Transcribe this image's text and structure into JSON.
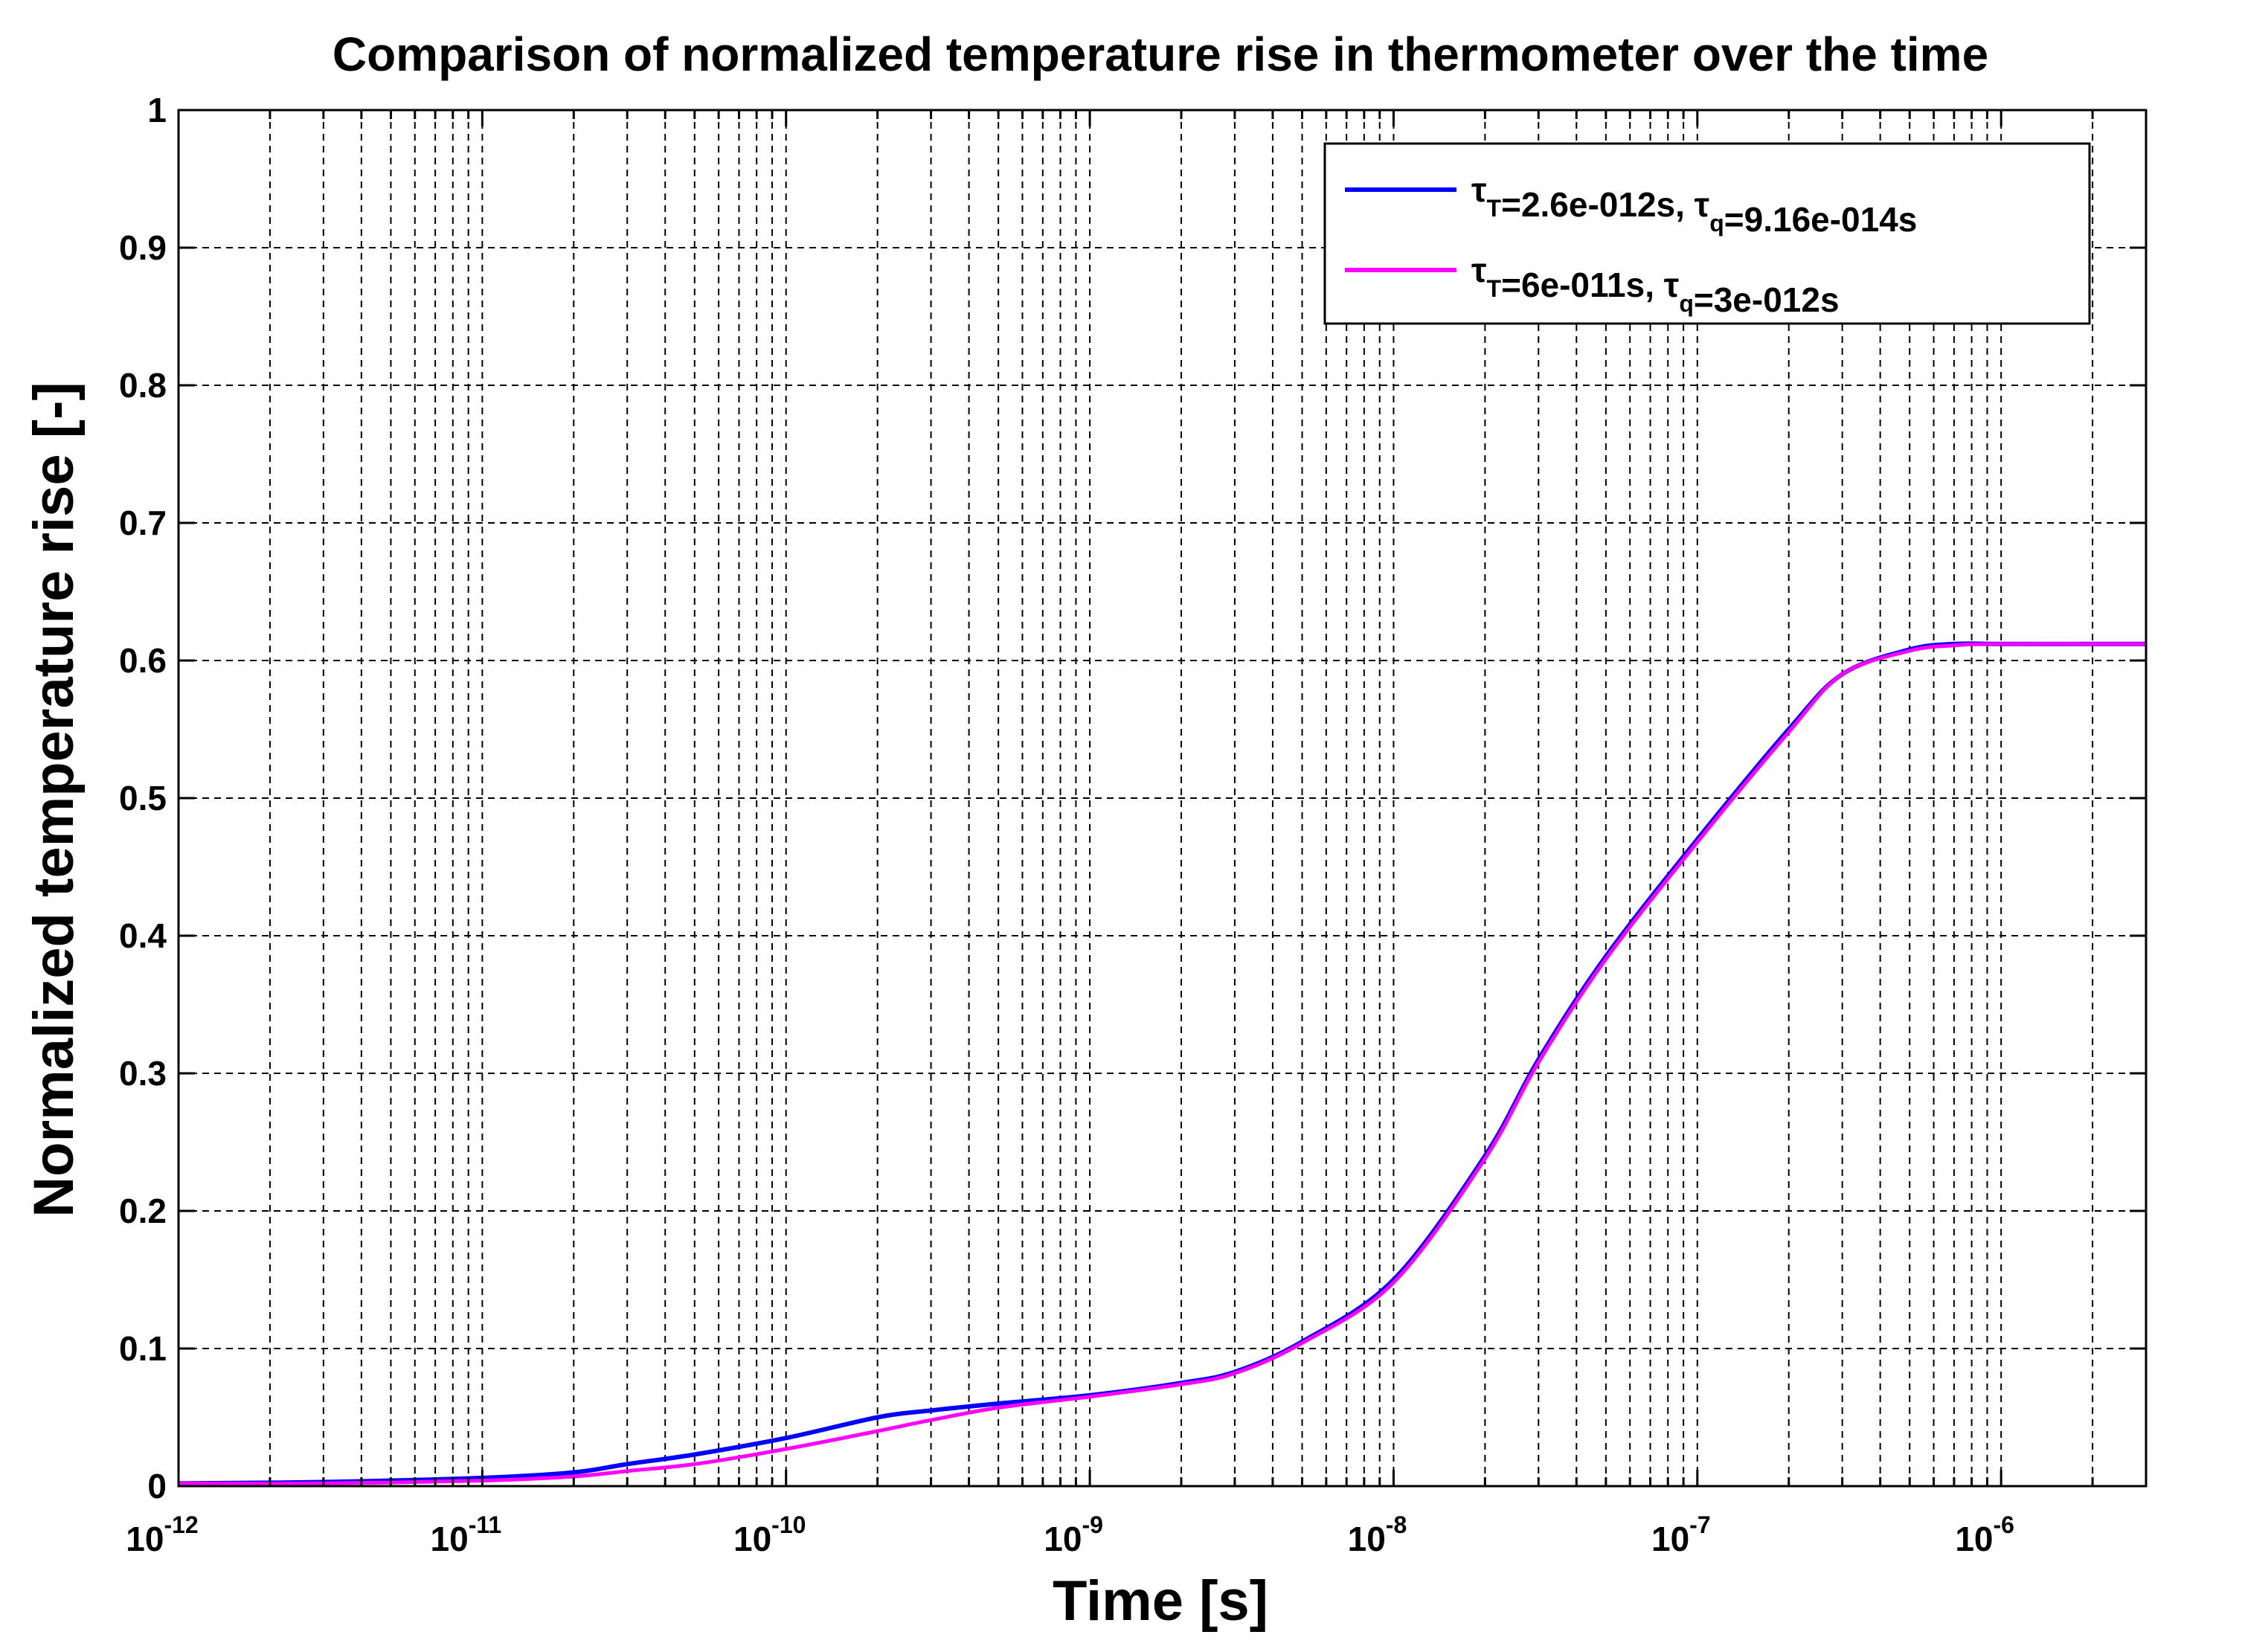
{
  "chart_data": {
    "type": "line",
    "title": "Comparison of normalized temperature rise in thermometer over the time",
    "xlabel": "Time [s]",
    "ylabel": "Normalized temperature rise [-]",
    "xscale": "log",
    "xlim": [
      1e-12,
      3e-06
    ],
    "ylim": [
      0,
      1
    ],
    "grid": true,
    "legend_position": "top-right",
    "x_ticks": [
      {
        "base": "10",
        "exp": "-12",
        "value": 1e-12
      },
      {
        "base": "10",
        "exp": "-11",
        "value": 1e-11
      },
      {
        "base": "10",
        "exp": "-10",
        "value": 1e-10
      },
      {
        "base": "10",
        "exp": "-9",
        "value": 1e-09
      },
      {
        "base": "10",
        "exp": "-8",
        "value": 1e-08
      },
      {
        "base": "10",
        "exp": "-7",
        "value": 1e-07
      },
      {
        "base": "10",
        "exp": "-6",
        "value": 1e-06
      }
    ],
    "y_ticks": [
      {
        "label": "0",
        "value": 0
      },
      {
        "label": "0.1",
        "value": 0.1
      },
      {
        "label": "0.2",
        "value": 0.2
      },
      {
        "label": "0.3",
        "value": 0.3
      },
      {
        "label": "0.4",
        "value": 0.4
      },
      {
        "label": "0.5",
        "value": 0.5
      },
      {
        "label": "0.6",
        "value": 0.6
      },
      {
        "label": "0.7",
        "value": 0.7
      },
      {
        "label": "0.8",
        "value": 0.8
      },
      {
        "label": "0.9",
        "value": 0.9
      },
      {
        "label": "1",
        "value": 1
      }
    ],
    "series": [
      {
        "name": "τT=2.6e-012s, τq=9.16e-014s",
        "legend": [
          {
            "t": "τ",
            "s": "T"
          },
          {
            "t": "=2.6e-012s, τ",
            "s": "q"
          },
          {
            "t": "=9.16e-014s",
            "s": ""
          }
        ],
        "color": "#0000ff",
        "x": [
          1e-12,
          3e-12,
          1e-11,
          2e-11,
          3e-11,
          5e-11,
          1e-10,
          2e-10,
          3e-10,
          5e-10,
          1e-09,
          2e-09,
          3e-09,
          5e-09,
          1e-08,
          2e-08,
          3e-08,
          5e-08,
          1e-07,
          2e-07,
          3e-07,
          5e-07,
          7e-07,
          1e-06,
          3e-06
        ],
        "y": [
          0.002,
          0.003,
          0.006,
          0.01,
          0.016,
          0.023,
          0.035,
          0.05,
          0.055,
          0.06,
          0.066,
          0.075,
          0.083,
          0.105,
          0.15,
          0.24,
          0.31,
          0.385,
          0.47,
          0.55,
          0.59,
          0.608,
          0.612,
          0.612,
          0.612
        ]
      },
      {
        "name": "τT=6e-011s, τq=3e-012s",
        "legend": [
          {
            "t": "τ",
            "s": "T"
          },
          {
            "t": "=6e-011s, τ",
            "s": "q"
          },
          {
            "t": "=3e-012s",
            "s": ""
          }
        ],
        "color": "#ff00ff",
        "x": [
          1e-12,
          3e-12,
          1e-11,
          2e-11,
          3e-11,
          5e-11,
          1e-10,
          2e-10,
          3e-10,
          5e-10,
          1e-09,
          2e-09,
          3e-09,
          5e-09,
          1e-08,
          2e-08,
          3e-08,
          5e-08,
          1e-07,
          2e-07,
          3e-07,
          5e-07,
          7e-07,
          1e-06,
          3e-06
        ],
        "y": [
          0.002,
          0.002,
          0.004,
          0.007,
          0.011,
          0.016,
          0.027,
          0.04,
          0.048,
          0.057,
          0.065,
          0.074,
          0.082,
          0.104,
          0.148,
          0.238,
          0.308,
          0.383,
          0.468,
          0.548,
          0.59,
          0.607,
          0.611,
          0.612,
          0.612
        ]
      }
    ]
  }
}
